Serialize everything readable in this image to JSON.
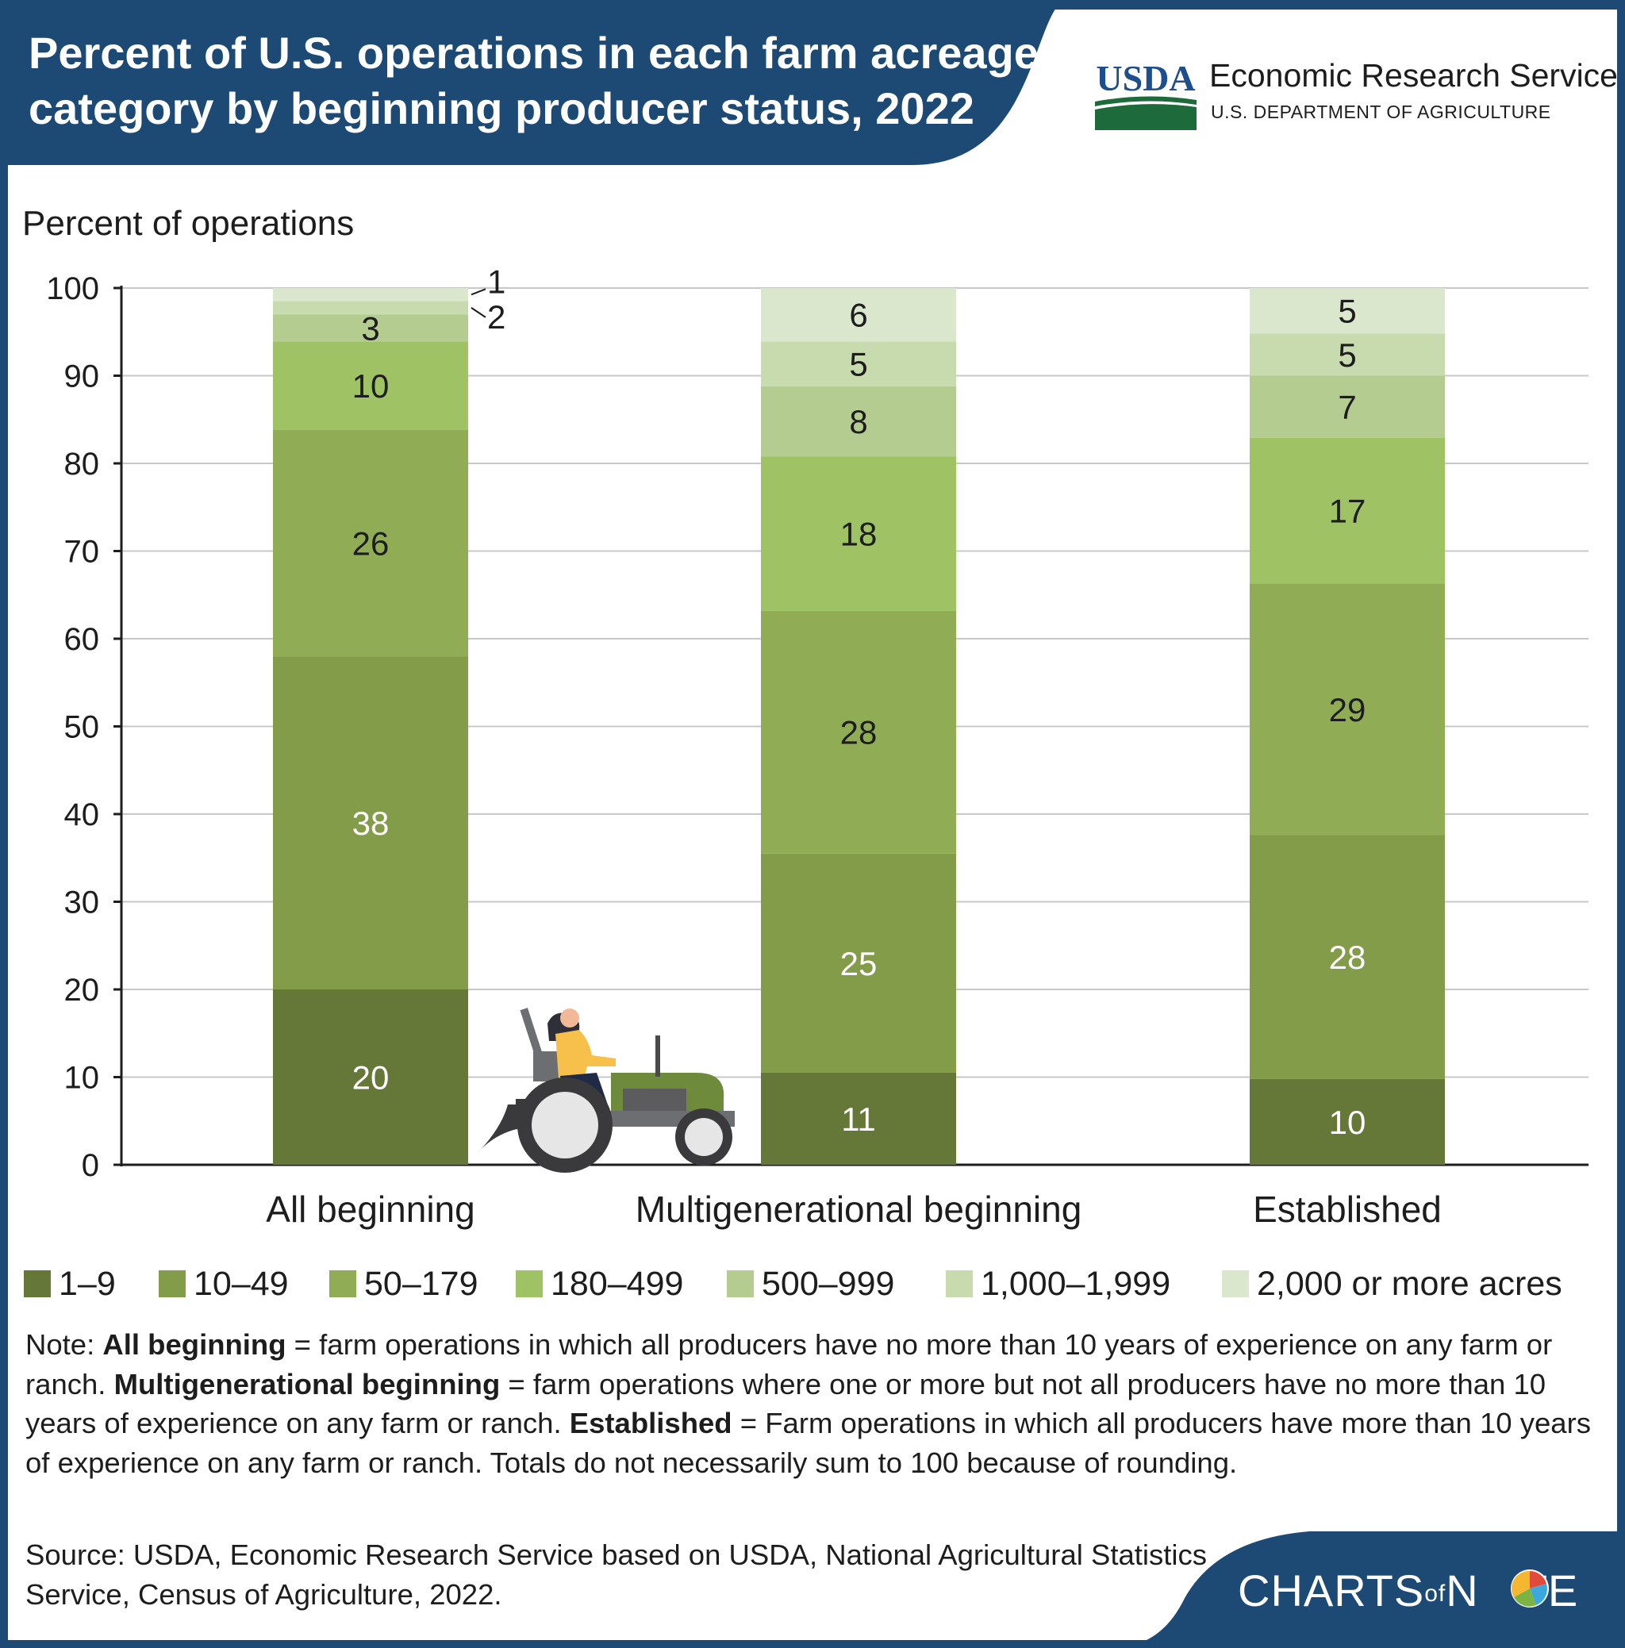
{
  "header": {
    "title": "Percent of U.S. operations in each farm acreage category by beginning producer status, 2022",
    "agency_mark": "USDA",
    "agency_name": "Economic Research Service",
    "department": "U.S. DEPARTMENT OF AGRICULTURE",
    "band_color": "#1c4a75"
  },
  "chart_data": {
    "type": "bar",
    "stacked": true,
    "ylabel": "Percent of operations",
    "ylim": [
      0,
      100
    ],
    "yticks": [
      0,
      10,
      20,
      30,
      40,
      50,
      60,
      70,
      80,
      90,
      100
    ],
    "grid": true,
    "categories": [
      "All beginning",
      "Multigenerational beginning",
      "Established"
    ],
    "series": [
      {
        "name": "1–9",
        "color": "#667838",
        "label_color": "#ffffff",
        "values": [
          20,
          11,
          10
        ],
        "cumulative": [
          20,
          10.5,
          9.8
        ]
      },
      {
        "name": "10–49",
        "color": "#839c4a",
        "label_color": "#ffffff",
        "values": [
          38,
          25,
          28
        ],
        "cumulative": [
          58,
          35.5,
          37.6
        ]
      },
      {
        "name": "50–179",
        "color": "#90ad56",
        "label_color": "#1d1d1d",
        "values": [
          26,
          28,
          29
        ],
        "cumulative": [
          83.8,
          63.2,
          66.3
        ]
      },
      {
        "name": "180–499",
        "color": "#9fc264",
        "label_color": "#1d1d1d",
        "values": [
          10,
          18,
          17
        ],
        "cumulative": [
          93.9,
          80.8,
          82.9
        ]
      },
      {
        "name": "500–999",
        "color": "#b4cc90",
        "label_color": "#1d1d1d",
        "values": [
          3,
          8,
          7
        ],
        "cumulative": [
          97,
          88.8,
          90
        ]
      },
      {
        "name": "1,000–1,999",
        "color": "#c8dbaf",
        "label_color": "#1d1d1d",
        "values": [
          2,
          5,
          5
        ],
        "cumulative": [
          98.5,
          93.9,
          94.8
        ]
      },
      {
        "name": "2,000 or more acres",
        "color": "#dbe7cd",
        "label_color": "#1d1d1d",
        "values": [
          1,
          6,
          5
        ],
        "cumulative": [
          100,
          100,
          100
        ]
      }
    ],
    "legend_position": "bottom"
  },
  "note": {
    "prefix": "Note: ",
    "term1": "All beginning",
    "def1": " = farm operations in which all producers have no more than 10 years of experience on any farm or ranch. ",
    "term2": "Multigenerational beginning",
    "def2": " = farm operations where one or more but not all producers have no more than 10 years of experience on any farm or ranch. ",
    "term3": "Established",
    "def3": " = Farm operations in which all producers have more than 10 years of experience on any farm or ranch. Totals do not necessarily sum to 100 because of rounding."
  },
  "source": "Source: USDA, Economic Research Service based on USDA, National Agricultural Statistics Service, Census of Agriculture, 2022.",
  "brand": {
    "part1": "CHARTS",
    "part2": "of",
    "part3": "N",
    "part4": "TE"
  }
}
